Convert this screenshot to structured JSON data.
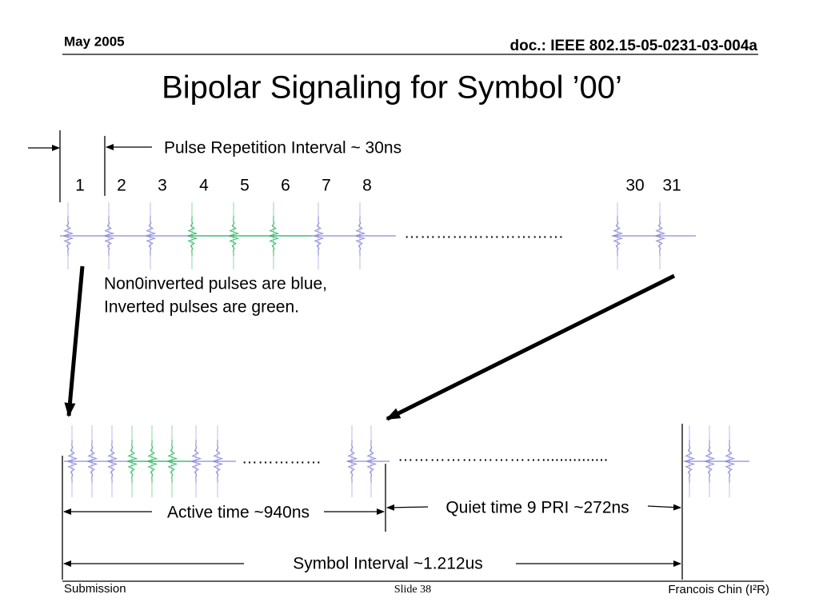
{
  "header": {
    "date": "May 2005",
    "doc": "doc.: IEEE 802.15-05-0231-03-004a"
  },
  "title": "Bipolar Signaling for Symbol ’00’",
  "pri_label": "Pulse Repetition Interval ~ 30ns",
  "pulse_numbers": [
    "1",
    "2",
    "3",
    "4",
    "5",
    "6",
    "7",
    "8",
    "30",
    "31"
  ],
  "top_dots": "…………………………",
  "note": [
    "Non0inverted pulses are blue,",
    "Inverted pulses are green."
  ],
  "bottom_dots": [
    "……………",
    "………………………..............."
  ],
  "active_label": "Active time ~940ns",
  "quiet_label": "Quiet time 9 PRI ~272ns",
  "symbol_label": "Symbol Interval ~1.212us",
  "footer": {
    "left": "Submission",
    "center": "Slide 38",
    "right": "Francois Chin (I²R)"
  }
}
